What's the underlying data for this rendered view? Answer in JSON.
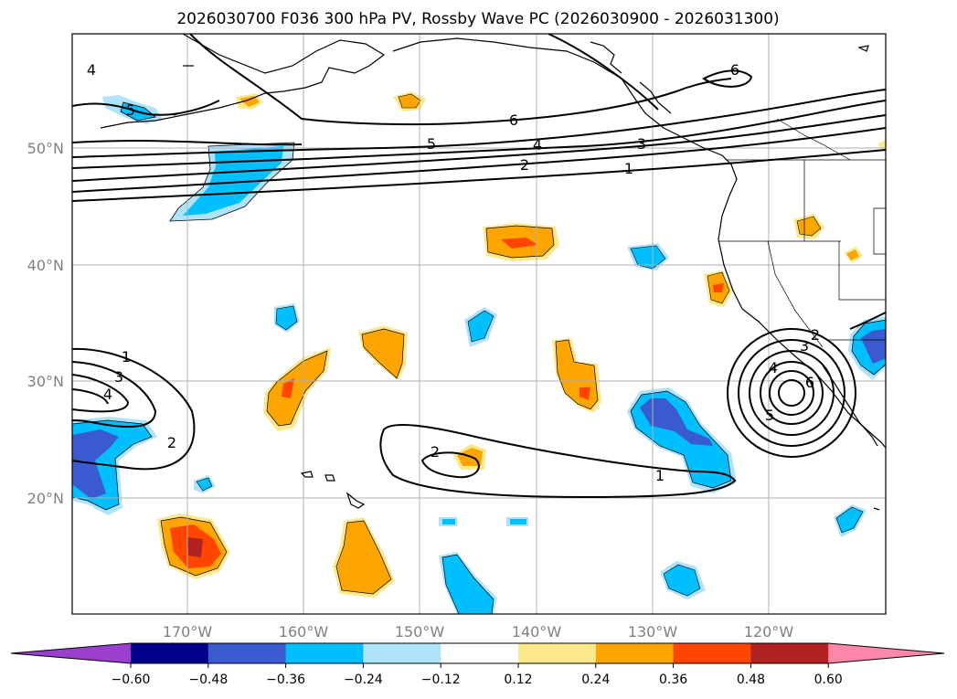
{
  "title": "2026030700 F036 300 hPa PV, Rossby Wave PC (2026030900 - 2026031300)",
  "lat_labels": [
    "50°N",
    "40°N",
    "30°N",
    "20°N"
  ],
  "lon_labels": [
    "170°W",
    "160°W",
    "150°W",
    "140°W",
    "130°W",
    "120°W"
  ],
  "contour_labels": {
    "c1": "6",
    "c2": "5",
    "c3": "4",
    "c4": "3",
    "c5": "2",
    "c6": "1",
    "c7": "6",
    "c8": "5",
    "c9": "4",
    "c10": "1",
    "c11": "3",
    "c12": "4",
    "c13": "2",
    "c14": "2",
    "c15": "1",
    "c16": "2",
    "c17": "3",
    "c18": "4",
    "c19": "6",
    "c20": "5"
  },
  "colorbar": {
    "colors": [
      "#9b3fcf",
      "#00008b",
      "#3a5bcf",
      "#00bfff",
      "#aee3fb",
      "#ffffff",
      "#fde98c",
      "#ffa500",
      "#ff4500",
      "#b22222",
      "#ff88aa"
    ],
    "tick_labels": [
      "−0.60",
      "−0.48",
      "−0.36",
      "−0.24",
      "−0.12",
      "0.12",
      "0.24",
      "0.36",
      "0.48",
      "0.60"
    ]
  },
  "legend_colors": {
    "neg_light": "#aee3fb",
    "neg_mid": "#00bfff",
    "neg_dark": "#3a5bcf",
    "pos_light": "#fde98c",
    "pos_mid": "#ffa500",
    "pos_dark": "#ff4500",
    "pos_darkest": "#b22222"
  }
}
